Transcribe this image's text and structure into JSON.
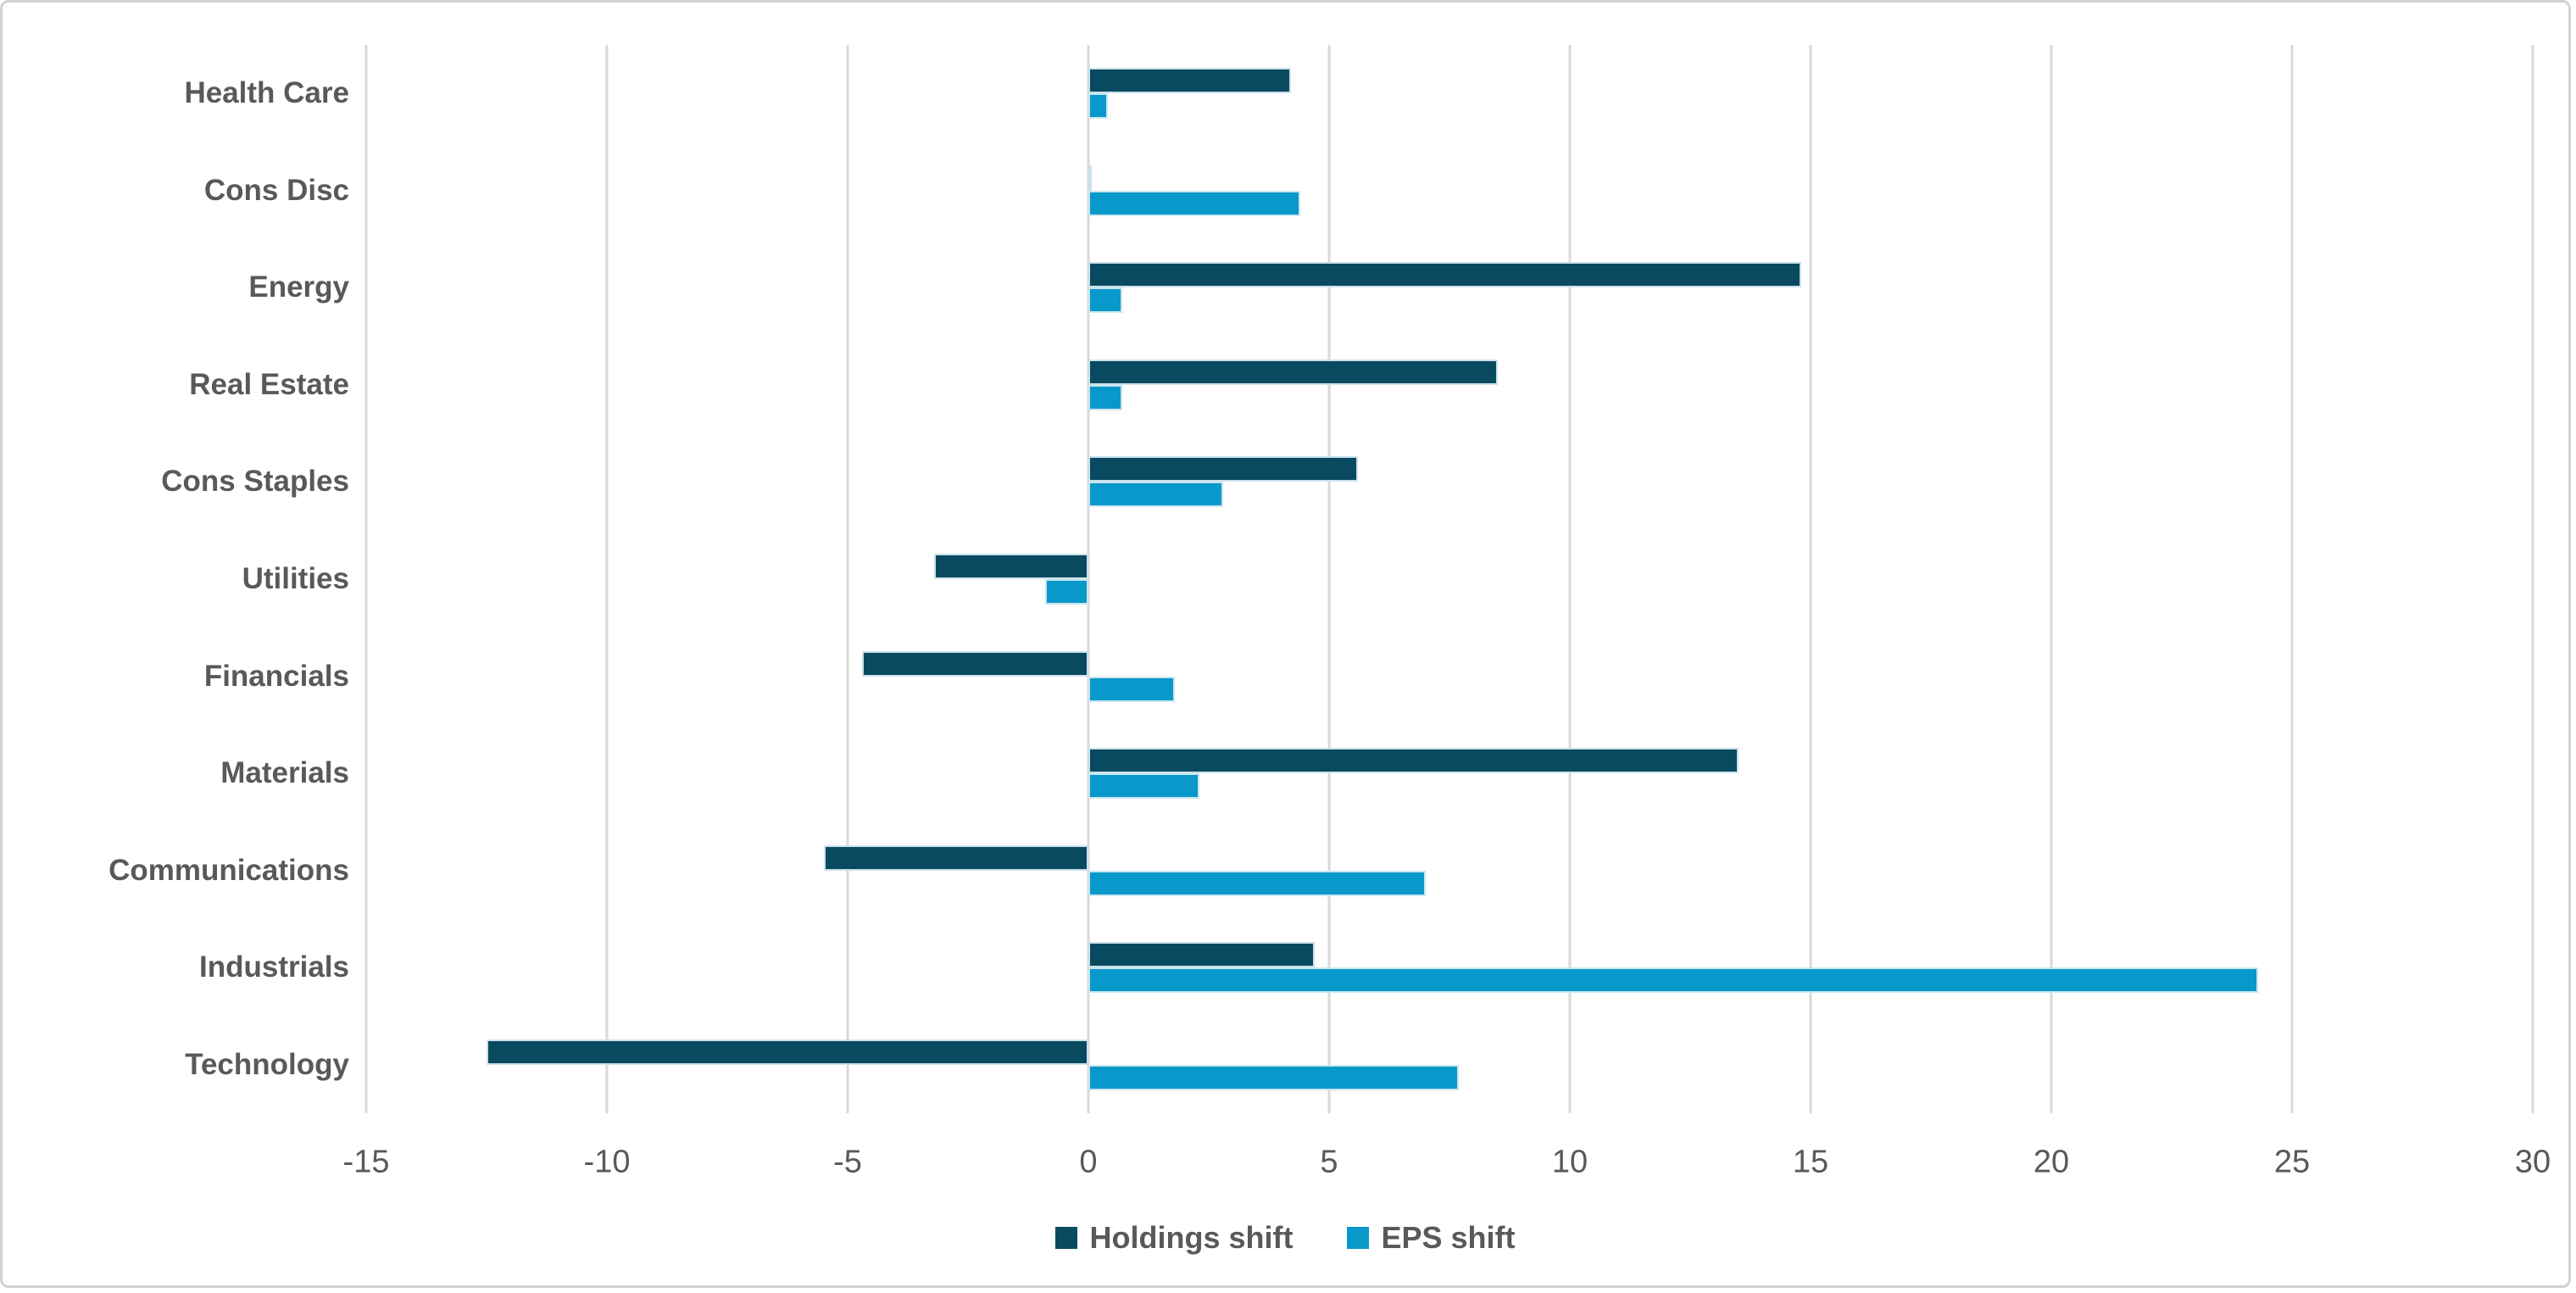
{
  "colors": {
    "holdings_series": "#0a4a60",
    "eps_series": "#0898c9",
    "gridline": "#d9d9d9",
    "axis_text": "#595959",
    "card_border": "#d2d2d2",
    "background": "#ffffff",
    "bar_outline": "#d6e9f3"
  },
  "legend": {
    "position": "bottom-center",
    "items": [
      {
        "label": "Holdings shift",
        "color": "#0a4a60"
      },
      {
        "label": "EPS shift",
        "color": "#0898c9"
      }
    ]
  },
  "chart_data": {
    "type": "bar",
    "orientation": "horizontal",
    "title": "",
    "xlabel": "",
    "ylabel": "",
    "grid": true,
    "legend_position": "bottom",
    "categories": [
      "Health Care",
      "Cons Disc",
      "Energy",
      "Real Estate",
      "Cons Staples",
      "Utilities",
      "Financials",
      "Materials",
      "Communications",
      "Industrials",
      "Technology"
    ],
    "series": [
      {
        "name": "Holdings shift",
        "color": "#0a4a60",
        "values": [
          4.2,
          0.05,
          14.8,
          8.5,
          5.6,
          -3.2,
          -4.7,
          13.5,
          -5.5,
          4.7,
          -12.5
        ]
      },
      {
        "name": "EPS shift",
        "color": "#0898c9",
        "values": [
          0.4,
          4.4,
          0.7,
          0.7,
          2.8,
          -0.9,
          1.8,
          2.3,
          7.0,
          24.3,
          7.7
        ]
      }
    ],
    "x_axis": {
      "min": -15,
      "max": 30,
      "tick_step": 5,
      "ticks": [
        -15,
        -10,
        -5,
        0,
        5,
        10,
        15,
        20,
        25,
        30
      ]
    }
  }
}
